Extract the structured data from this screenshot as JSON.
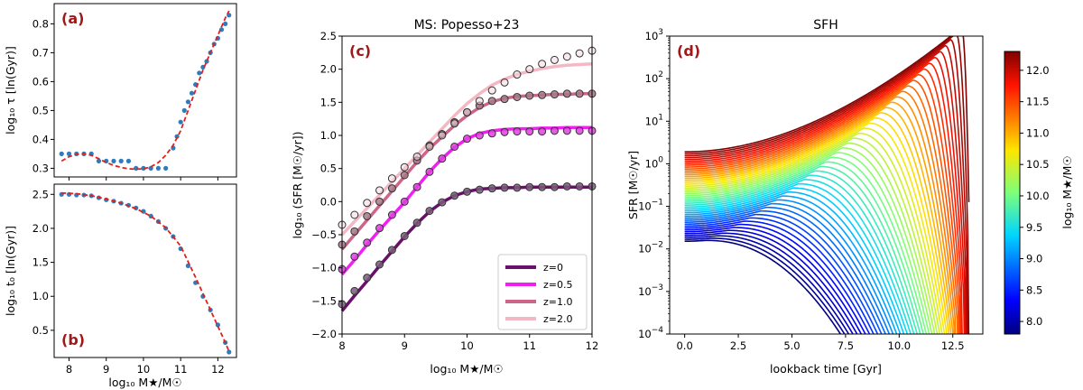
{
  "panels": {
    "a": {
      "label": "(a)",
      "ylabel": "log₁₀ τ [ln(Gyr)]",
      "xlim": [
        7.6,
        12.5
      ],
      "ylim": [
        0.27,
        0.87
      ],
      "yticks": [
        "0.3",
        "0.4",
        "0.5",
        "0.6",
        "0.7",
        "0.8"
      ],
      "ytick_values": [
        0.3,
        0.4,
        0.5,
        0.6,
        0.7,
        0.8
      ],
      "points": [
        [
          7.8,
          0.35
        ],
        [
          8.0,
          0.35
        ],
        [
          8.2,
          0.35
        ],
        [
          8.4,
          0.35
        ],
        [
          8.6,
          0.35
        ],
        [
          8.8,
          0.325
        ],
        [
          9.0,
          0.325
        ],
        [
          9.2,
          0.325
        ],
        [
          9.4,
          0.325
        ],
        [
          9.6,
          0.325
        ],
        [
          9.8,
          0.3
        ],
        [
          10.0,
          0.3
        ],
        [
          10.2,
          0.3
        ],
        [
          10.4,
          0.3
        ],
        [
          10.6,
          0.3
        ],
        [
          10.8,
          0.37
        ],
        [
          10.9,
          0.41
        ],
        [
          11.0,
          0.46
        ],
        [
          11.1,
          0.5
        ],
        [
          11.2,
          0.53
        ],
        [
          11.3,
          0.56
        ],
        [
          11.4,
          0.59
        ],
        [
          11.5,
          0.63
        ],
        [
          11.6,
          0.65
        ],
        [
          11.7,
          0.67
        ],
        [
          11.8,
          0.7
        ],
        [
          11.9,
          0.73
        ],
        [
          12.0,
          0.75
        ],
        [
          12.1,
          0.78
        ],
        [
          12.2,
          0.8
        ],
        [
          12.3,
          0.83
        ]
      ],
      "fit": [
        [
          7.8,
          0.325
        ],
        [
          8.0,
          0.34
        ],
        [
          8.2,
          0.348
        ],
        [
          8.4,
          0.35
        ],
        [
          8.6,
          0.345
        ],
        [
          8.8,
          0.333
        ],
        [
          9.0,
          0.32
        ],
        [
          9.2,
          0.31
        ],
        [
          9.4,
          0.303
        ],
        [
          9.6,
          0.298
        ],
        [
          9.8,
          0.297
        ],
        [
          10.0,
          0.298
        ],
        [
          10.2,
          0.305
        ],
        [
          10.4,
          0.32
        ],
        [
          10.6,
          0.345
        ],
        [
          10.8,
          0.38
        ],
        [
          11.0,
          0.43
        ],
        [
          11.2,
          0.5
        ],
        [
          11.4,
          0.57
        ],
        [
          11.6,
          0.64
        ],
        [
          11.8,
          0.7
        ],
        [
          12.0,
          0.76
        ],
        [
          12.2,
          0.82
        ],
        [
          12.3,
          0.845
        ]
      ]
    },
    "b": {
      "label": "(b)",
      "ylabel": "log₁₀ t₀ [ln(Gyr)]",
      "xlabel": "log₁₀ M★/M☉",
      "xlim": [
        7.6,
        12.5
      ],
      "ylim": [
        0.1,
        2.65
      ],
      "yticks": [
        "0.5",
        "1.0",
        "1.5",
        "2.0",
        "2.5"
      ],
      "ytick_values": [
        0.5,
        1.0,
        1.5,
        2.0,
        2.5
      ],
      "xticks": [
        "8",
        "9",
        "10",
        "11",
        "12"
      ],
      "xtick_values": [
        8,
        9,
        10,
        11,
        12
      ],
      "points": [
        [
          7.8,
          2.5
        ],
        [
          8.0,
          2.5
        ],
        [
          8.2,
          2.49
        ],
        [
          8.4,
          2.49
        ],
        [
          8.6,
          2.48
        ],
        [
          8.8,
          2.45
        ],
        [
          9.0,
          2.42
        ],
        [
          9.2,
          2.4
        ],
        [
          9.4,
          2.37
        ],
        [
          9.6,
          2.34
        ],
        [
          9.8,
          2.3
        ],
        [
          10.0,
          2.25
        ],
        [
          10.2,
          2.18
        ],
        [
          10.4,
          2.1
        ],
        [
          10.6,
          2.0
        ],
        [
          10.8,
          1.88
        ],
        [
          11.0,
          1.7
        ],
        [
          11.2,
          1.45
        ],
        [
          11.4,
          1.2
        ],
        [
          11.6,
          1.0
        ],
        [
          11.8,
          0.8
        ],
        [
          12.0,
          0.58
        ],
        [
          12.2,
          0.32
        ],
        [
          12.3,
          0.18
        ]
      ],
      "fit": [
        [
          7.8,
          2.52
        ],
        [
          8.2,
          2.51
        ],
        [
          8.6,
          2.48
        ],
        [
          9.0,
          2.43
        ],
        [
          9.4,
          2.37
        ],
        [
          9.8,
          2.29
        ],
        [
          10.2,
          2.18
        ],
        [
          10.6,
          2.01
        ],
        [
          11.0,
          1.74
        ],
        [
          11.4,
          1.28
        ],
        [
          11.8,
          0.8
        ],
        [
          12.0,
          0.56
        ],
        [
          12.2,
          0.32
        ],
        [
          12.3,
          0.19
        ]
      ]
    },
    "c": {
      "label": "(c)",
      "title": "MS: Popesso+23",
      "ylabel": "log₁₀ (SFR [M☉/yr])",
      "xlabel": "log₁₀ M★/M☉",
      "xlim": [
        8,
        12
      ],
      "ylim": [
        -2.0,
        2.5
      ],
      "xticks": [
        "8",
        "9",
        "10",
        "11",
        "12"
      ],
      "xtick_values": [
        8,
        9,
        10,
        11,
        12
      ],
      "yticks": [
        "−2.0",
        "−1.5",
        "−1.0",
        "−0.5",
        "0.0",
        "0.5",
        "1.0",
        "1.5",
        "2.0",
        "2.5"
      ],
      "ytick_values": [
        -2.0,
        -1.5,
        -1.0,
        -0.5,
        0.0,
        0.5,
        1.0,
        1.5,
        2.0,
        2.5
      ],
      "legend": [
        "z=0",
        "z=0.5",
        "z=1.0",
        "z=2.0"
      ],
      "series_colors": [
        "#6a0f6a",
        "#f020f0",
        "#cc6688",
        "#f4b8c4"
      ],
      "curve_x": [
        8.0,
        8.2,
        8.4,
        8.6,
        8.8,
        9.0,
        9.2,
        9.4,
        9.6,
        9.8,
        10.0,
        10.2,
        10.4,
        10.6,
        10.8,
        11.0,
        11.2,
        11.4,
        11.6,
        11.8,
        12.0
      ],
      "curves": [
        [
          -1.65,
          -1.42,
          -1.2,
          -0.97,
          -0.75,
          -0.53,
          -0.33,
          -0.15,
          -0.01,
          0.09,
          0.15,
          0.19,
          0.2,
          0.21,
          0.21,
          0.22,
          0.22,
          0.22,
          0.22,
          0.22,
          0.22
        ],
        [
          -1.1,
          -0.88,
          -0.65,
          -0.43,
          -0.22,
          -0.01,
          0.22,
          0.45,
          0.65,
          0.82,
          0.95,
          1.03,
          1.07,
          1.09,
          1.1,
          1.1,
          1.11,
          1.11,
          1.12,
          1.12,
          1.12
        ],
        [
          -0.72,
          -0.5,
          -0.28,
          -0.06,
          0.16,
          0.38,
          0.6,
          0.8,
          0.98,
          1.15,
          1.3,
          1.42,
          1.51,
          1.56,
          1.59,
          1.6,
          1.61,
          1.62,
          1.62,
          1.63,
          1.63
        ],
        [
          -0.5,
          -0.3,
          -0.1,
          0.1,
          0.3,
          0.5,
          0.7,
          0.9,
          1.1,
          1.3,
          1.48,
          1.63,
          1.76,
          1.85,
          1.92,
          1.97,
          2.01,
          2.04,
          2.06,
          2.07,
          2.08
        ]
      ],
      "points_x": [
        8.0,
        8.2,
        8.4,
        8.6,
        8.8,
        9.0,
        9.2,
        9.4,
        9.6,
        9.8,
        10.0,
        10.2,
        10.4,
        10.6,
        10.8,
        11.0,
        11.2,
        11.4,
        11.6,
        11.8,
        12.0
      ],
      "points": [
        [
          -1.55,
          -1.35,
          -1.15,
          -0.95,
          -0.73,
          -0.52,
          -0.32,
          -0.14,
          -0.01,
          0.09,
          0.15,
          0.18,
          0.2,
          0.21,
          0.21,
          0.22,
          0.22,
          0.22,
          0.23,
          0.23,
          0.23
        ],
        [
          -1.02,
          -0.83,
          -0.62,
          -0.4,
          -0.2,
          0.0,
          0.22,
          0.45,
          0.65,
          0.83,
          0.95,
          1.0,
          1.03,
          1.05,
          1.06,
          1.06,
          1.06,
          1.07,
          1.07,
          1.07,
          1.07
        ],
        [
          -0.65,
          -0.45,
          -0.22,
          0.0,
          0.2,
          0.4,
          0.62,
          0.85,
          1.02,
          1.2,
          1.35,
          1.45,
          1.52,
          1.55,
          1.58,
          1.6,
          1.61,
          1.62,
          1.63,
          1.63,
          1.63
        ],
        [
          -0.35,
          -0.2,
          -0.02,
          0.17,
          0.35,
          0.52,
          0.68,
          0.83,
          1.0,
          1.18,
          1.35,
          1.52,
          1.68,
          1.8,
          1.92,
          2.0,
          2.08,
          2.14,
          2.19,
          2.24,
          2.28
        ]
      ]
    },
    "d": {
      "label": "(d)",
      "title": "SFH",
      "ylabel": "SFR [M☉/yr]",
      "xlabel": "lookback time [Gyr]",
      "xlim": [
        -0.7,
        13.9
      ],
      "ylog": [
        -4,
        3
      ],
      "xticks": [
        "0.0",
        "2.5",
        "5.0",
        "7.5",
        "10.0",
        "12.5"
      ],
      "xtick_values": [
        0,
        2.5,
        5.0,
        7.5,
        10.0,
        12.5
      ],
      "yticks_base": "10",
      "yticks_exp": [
        "−4",
        "−3",
        "−2",
        "−1",
        "0",
        "1",
        "2",
        "3"
      ],
      "ytick_values": [
        -4,
        -3,
        -2,
        -1,
        0,
        1,
        2,
        3
      ],
      "colorbar_label": "log₁₀ M★/M☉",
      "colorbar_range": [
        7.8,
        12.3
      ],
      "colorbar_ticks": [
        "8.0",
        "8.5",
        "9.0",
        "9.5",
        "10.0",
        "10.5",
        "11.0",
        "11.5",
        "12.0"
      ],
      "colorbar_tick_values": [
        8.0,
        8.5,
        9.0,
        9.5,
        10.0,
        10.5,
        11.0,
        11.5,
        12.0
      ],
      "n_curves": 48
    }
  }
}
